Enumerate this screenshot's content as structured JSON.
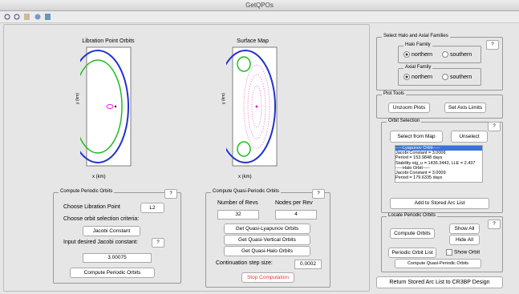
{
  "window": {
    "title": "GetQPOs"
  },
  "plots": {
    "left": {
      "title": "Libration Point Orbits",
      "xlabel": "x (km)",
      "ylabel": "y (km)"
    },
    "right": {
      "title": "Surface Map",
      "xlabel": "x (km)",
      "ylabel": "y (km)"
    }
  },
  "compute_periodic": {
    "title": "Compute Periodic Orbits",
    "help": "?",
    "libration_label": "Choose Libration Point",
    "libration_value": "L2",
    "criteria_label": "Choose orbit selection criteria:",
    "criteria_value": "Jacobi Constant",
    "jacobi_label": "Input desired Jacobi constant:",
    "jacobi_help": "?",
    "jacobi_value": "3.00075",
    "button": "Compute Periodic Orbits"
  },
  "quasi": {
    "title": "Compute Quasi-Periodic Orbits",
    "help": "?",
    "revs_label": "Number of Revs",
    "nodes_label": "Nodes per Rev",
    "revs": "32",
    "nodes": "4",
    "buttons": [
      "Get Quasi-Lyapunov Orbits",
      "Get Quasi-Vertical Orbits",
      "Get Quasi-Halo Orbits"
    ],
    "step_label": "Continuation step size:",
    "step": "0.0002",
    "stop": "Stop Computation"
  },
  "families": {
    "title": "Select Halo and Axial Families",
    "help": "?",
    "halo": {
      "title": "Halo Family",
      "options": [
        "northern",
        "southern"
      ]
    },
    "axial": {
      "title": "Axial Family",
      "options": [
        "northern",
        "southern"
      ]
    }
  },
  "plot_tools": {
    "title": "Plot Tools",
    "buttons": [
      "Unzoom Plots",
      "Set Axis Limits"
    ]
  },
  "orbit_selection": {
    "title": "Orbit Selection",
    "help": "?",
    "select": "Select from Map",
    "unselect": "Unselect",
    "list": [
      "-----Lyapunov Orbit-----",
      "Jacobi Constant = 3.0006",
      "Period = 153.9848 days",
      "Stability eig_u = 1436.3443, LLE = 2.437",
      "-----Halo Orbit-----",
      "Jacobi Constant = 3.0009",
      "Period = 179.6335 days"
    ],
    "add": "Add to Stored Arc List"
  },
  "locate": {
    "title": "Locate Periodic Orbits",
    "help": "?",
    "compute": "Compute Orbits",
    "show_all": "Show All",
    "hide_all": "Hide All",
    "dropdown": "Periodic Orbit List",
    "show_orbit": "Show Orbit",
    "compute_qp": "Compute Quasi-Periodic Orbits"
  },
  "return_button": "Return Stored Arc List to CR3BP Design"
}
